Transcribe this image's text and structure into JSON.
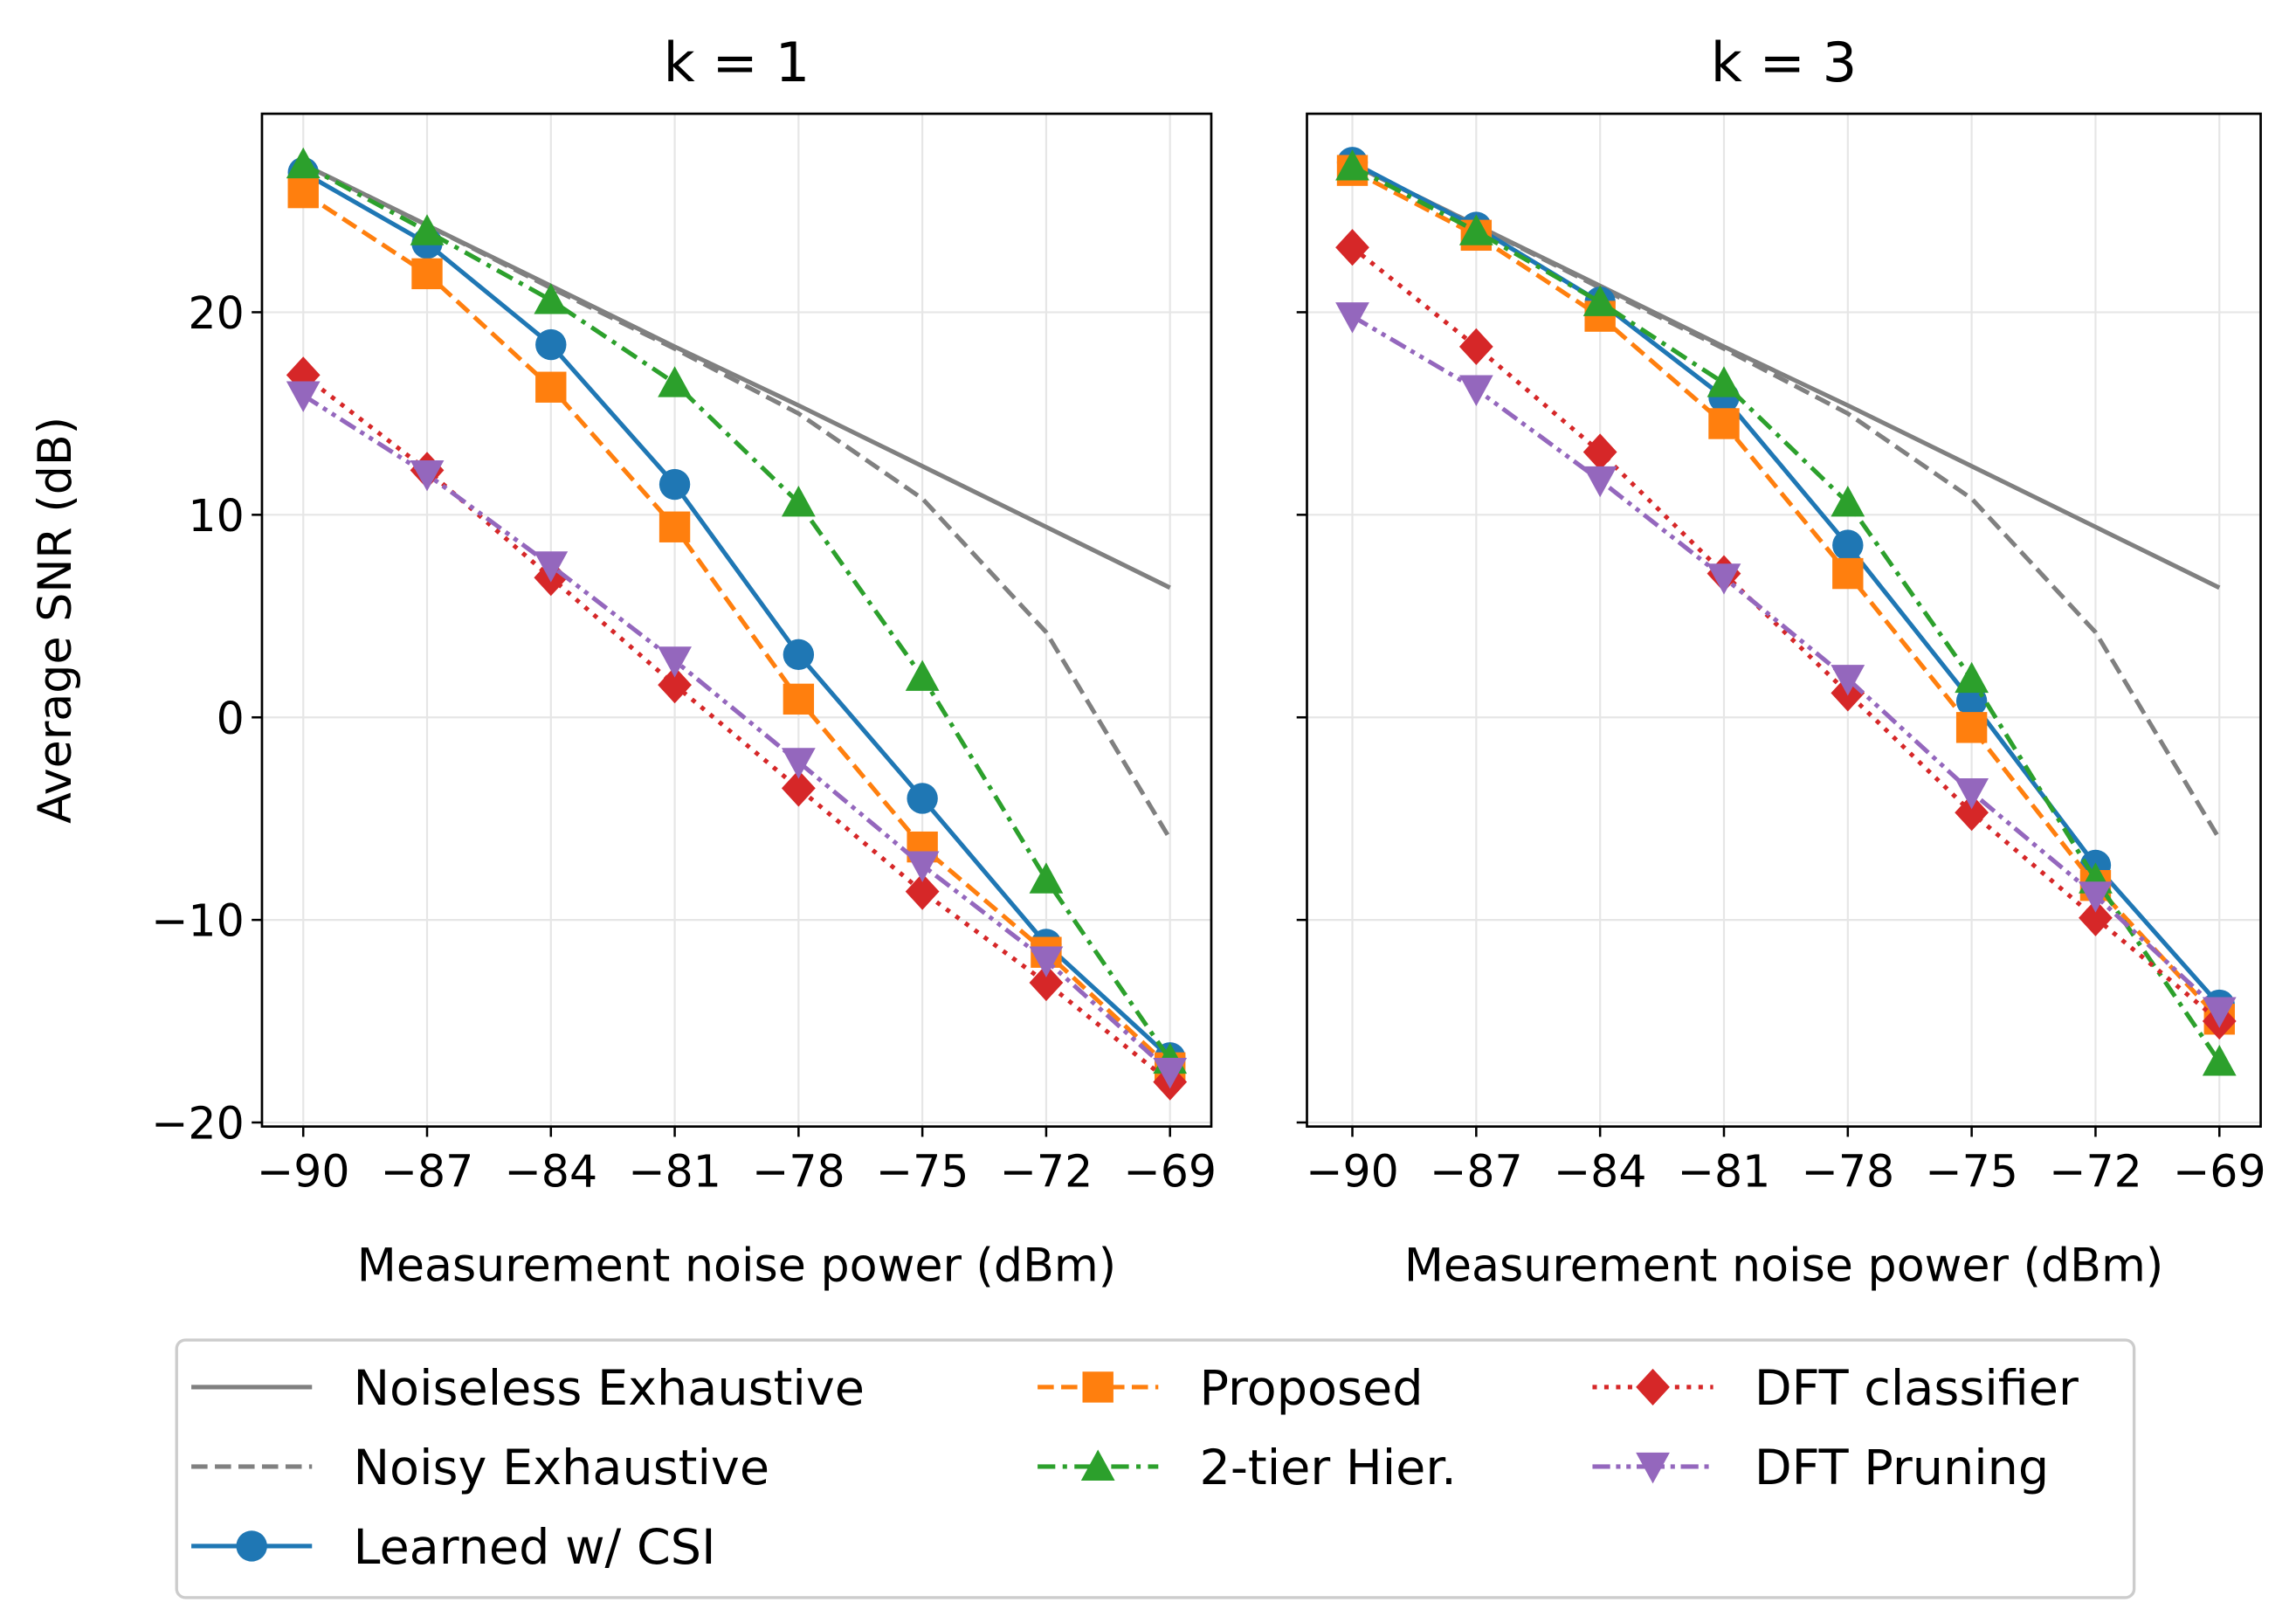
{
  "chart_data": {
    "type": "line",
    "legend": {
      "placement": "bottom",
      "entries": [
        "Noiseless Exhaustive",
        "Noisy Exhaustive",
        "Learned w/ CSI",
        "Proposed",
        "2-tier Hier.",
        "DFT classifier",
        "DFT Pruning"
      ]
    },
    "ylabel": "Average SNR (dB)",
    "grid": true,
    "panels": [
      {
        "title": "k = 1",
        "xlabel": "Measurement noise power (dBm)",
        "x": [
          -90,
          -87,
          -84,
          -81,
          -78,
          -75,
          -72,
          -69
        ],
        "xticks": [
          "−90",
          "−87",
          "−84",
          "−81",
          "−78",
          "−75",
          "−72",
          "−69"
        ],
        "yticks": [
          "−20",
          "−10",
          "0",
          "10",
          "20"
        ],
        "ytick_values": [
          -20,
          -10,
          0,
          10,
          20
        ],
        "ylim": [
          -20.2,
          29.8
        ],
        "xlim": [
          -91,
          -68
        ],
        "series": [
          {
            "name": "Noiseless Exhaustive",
            "color": "#808080",
            "style": "solid",
            "marker": "none",
            "values": [
              27.3,
              24.3,
              21.3,
              18.3,
              15.4,
              12.4,
              9.4,
              6.4
            ]
          },
          {
            "name": "Noisy Exhaustive",
            "color": "#808080",
            "style": "dashed",
            "marker": "none",
            "values": [
              27.3,
              24.3,
              21.2,
              18.2,
              15.0,
              10.8,
              4.2,
              -6.0
            ]
          },
          {
            "name": "Learned w/ CSI",
            "color": "#1f77b4",
            "style": "solid",
            "marker": "circle",
            "values": [
              26.9,
              23.4,
              18.4,
              11.5,
              3.1,
              -4.0,
              -11.2,
              -16.8
            ]
          },
          {
            "name": "Proposed",
            "color": "#ff7f0e",
            "style": "dashed",
            "marker": "square",
            "values": [
              25.9,
              21.9,
              16.3,
              9.4,
              0.9,
              -6.4,
              -11.6,
              -17.3
            ]
          },
          {
            "name": "2-tier Hier.",
            "color": "#2ca02c",
            "style": "dashdot",
            "marker": "triangle-up",
            "values": [
              27.3,
              24.0,
              20.6,
              16.5,
              10.6,
              2.0,
              -8.0,
              -16.9
            ]
          },
          {
            "name": "DFT classifier",
            "color": "#d62728",
            "style": "dotted",
            "marker": "diamond",
            "values": [
              16.9,
              12.2,
              6.9,
              1.6,
              -3.5,
              -8.6,
              -13.1,
              -18.0
            ]
          },
          {
            "name": "DFT Pruning",
            "color": "#9467bd",
            "style": "dashdotdot",
            "marker": "triangle-down",
            "values": [
              15.9,
              12.0,
              7.5,
              2.8,
              -2.2,
              -7.3,
              -12.0,
              -17.5
            ]
          }
        ]
      },
      {
        "title": "k = 3",
        "xlabel": "Measurement noise power (dBm)",
        "x": [
          -90,
          -87,
          -84,
          -81,
          -78,
          -75,
          -72,
          -69
        ],
        "xticks": [
          "−90",
          "−87",
          "−84",
          "−81",
          "−78",
          "−75",
          "−72",
          "−69"
        ],
        "yticks": [],
        "ytick_values": [
          -20,
          -10,
          0,
          10,
          20
        ],
        "ylim": [
          -20.2,
          29.8
        ],
        "xlim": [
          -91.1,
          -68
        ],
        "series": [
          {
            "name": "Noiseless Exhaustive",
            "color": "#808080",
            "style": "solid",
            "marker": "none",
            "values": [
              27.3,
              24.3,
              21.3,
              18.3,
              15.4,
              12.4,
              9.4,
              6.4
            ]
          },
          {
            "name": "Noisy Exhaustive",
            "color": "#808080",
            "style": "dashed",
            "marker": "none",
            "values": [
              27.3,
              24.3,
              21.2,
              18.2,
              15.0,
              10.8,
              4.2,
              -6.0
            ]
          },
          {
            "name": "Learned w/ CSI",
            "color": "#1f77b4",
            "style": "solid",
            "marker": "circle",
            "values": [
              27.4,
              24.2,
              20.5,
              15.8,
              8.5,
              0.8,
              -7.3,
              -14.2
            ]
          },
          {
            "name": "Proposed",
            "color": "#ff7f0e",
            "style": "dashed",
            "marker": "square",
            "values": [
              27.0,
              23.8,
              19.8,
              14.5,
              7.1,
              -0.5,
              -8.3,
              -14.9
            ]
          },
          {
            "name": "2-tier Hier.",
            "color": "#2ca02c",
            "style": "dashdot",
            "marker": "triangle-up",
            "values": [
              27.2,
              24.0,
              20.5,
              16.5,
              10.6,
              1.9,
              -8.0,
              -17.0
            ]
          },
          {
            "name": "DFT classifier",
            "color": "#d62728",
            "style": "dotted",
            "marker": "diamond",
            "values": [
              23.2,
              18.3,
              13.1,
              7.1,
              1.2,
              -4.7,
              -9.9,
              -15.0
            ]
          },
          {
            "name": "DFT Pruning",
            "color": "#9467bd",
            "style": "dashdotdot",
            "marker": "triangle-down",
            "values": [
              19.8,
              16.2,
              11.7,
              6.9,
              1.9,
              -3.7,
              -8.8,
              -14.5
            ]
          }
        ]
      }
    ]
  }
}
